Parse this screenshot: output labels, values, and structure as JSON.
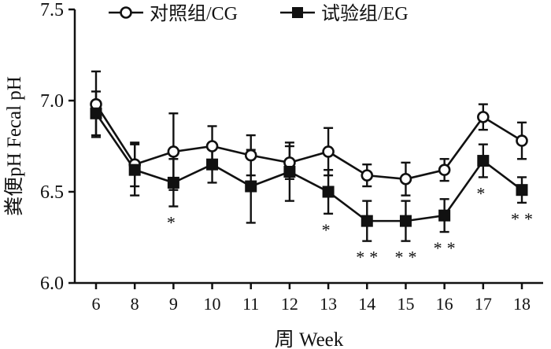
{
  "chart_data": {
    "type": "line",
    "x": [
      6,
      8,
      9,
      10,
      11,
      12,
      13,
      14,
      15,
      16,
      17,
      18
    ],
    "x_tick_labels": [
      "6",
      "8",
      "9",
      "10",
      "11",
      "12",
      "13",
      "14",
      "15",
      "16",
      "17",
      "18"
    ],
    "y_tick_labels": [
      "6.0",
      "6.5",
      "7.0",
      "7.5"
    ],
    "ylim": [
      6.0,
      7.5
    ],
    "xlabel": "周  Week",
    "ylabel": "粪便pH  Fecal pH",
    "legend_position": "top",
    "grid": false,
    "series": [
      {
        "name": "对照组/CG",
        "marker": "open-circle",
        "values": [
          6.98,
          6.65,
          6.72,
          6.75,
          6.7,
          6.66,
          6.72,
          6.59,
          6.57,
          6.62,
          6.91,
          6.78
        ],
        "error": [
          0.18,
          0.12,
          0.21,
          0.11,
          0.11,
          0.09,
          0.13,
          0.06,
          0.09,
          0.06,
          0.07,
          0.1
        ]
      },
      {
        "name": "试验组/EG",
        "marker": "filled-square",
        "values": [
          6.93,
          6.62,
          6.55,
          6.65,
          6.53,
          6.61,
          6.5,
          6.34,
          6.34,
          6.37,
          6.67,
          6.51
        ],
        "error": [
          0.12,
          0.14,
          0.13,
          0.1,
          0.2,
          0.16,
          0.12,
          0.11,
          0.11,
          0.09,
          0.09,
          0.07
        ]
      }
    ],
    "annotations": [
      {
        "x": 9,
        "text": "*"
      },
      {
        "x": 13,
        "text": "*"
      },
      {
        "x": 14,
        "text": "**"
      },
      {
        "x": 15,
        "text": "**"
      },
      {
        "x": 16,
        "text": "**"
      },
      {
        "x": 17,
        "text": "*"
      },
      {
        "x": 18,
        "text": "**"
      }
    ],
    "colors": {
      "line": "#111111",
      "background": "#ffffff"
    }
  }
}
